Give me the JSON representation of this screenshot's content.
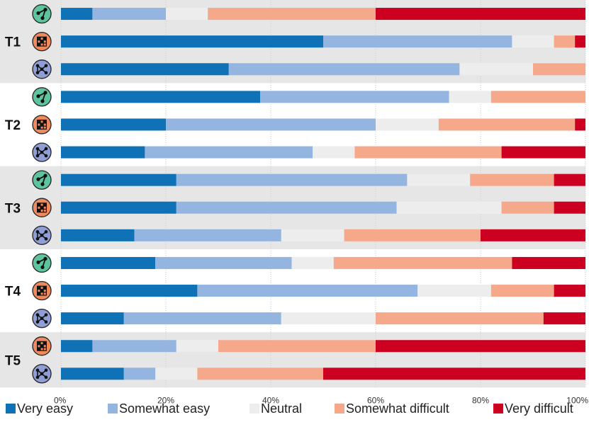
{
  "chart_data": {
    "type": "bar",
    "orientation": "horizontal",
    "stacked": true,
    "normalized": true,
    "title": "",
    "xlabel": "",
    "ylabel": "",
    "xlim": [
      0,
      100
    ],
    "x_ticks": [
      "0%",
      "20%",
      "40%",
      "60%",
      "80%",
      "100%"
    ],
    "grid": true,
    "legend_position": "bottom",
    "categories": [
      "Very easy",
      "Somewhat easy",
      "Neutral",
      "Somewhat difficult",
      "Very difficult"
    ],
    "colors": [
      "#0f72b6",
      "#94b5e0",
      "#ededed",
      "#f5a98a",
      "#cc0020"
    ],
    "icon_types": {
      "node-link": {
        "name": "node-link-icon",
        "bg": "#5ec49e"
      },
      "matrix": {
        "name": "matrix-icon",
        "bg": "#f08a5d"
      },
      "hybrid": {
        "name": "hybrid-graph-icon",
        "bg": "#8f9ed6"
      }
    },
    "groups": [
      {
        "label": "T1",
        "shaded": true,
        "rows": [
          {
            "icon": "node-link",
            "values": [
              6,
              14,
              8,
              32,
              40
            ]
          },
          {
            "icon": "matrix",
            "values": [
              50,
              36,
              8,
              4,
              2
            ]
          },
          {
            "icon": "hybrid",
            "values": [
              32,
              44,
              14,
              10,
              0
            ]
          }
        ]
      },
      {
        "label": "T2",
        "shaded": false,
        "rows": [
          {
            "icon": "node-link",
            "values": [
              38,
              36,
              8,
              18,
              0
            ]
          },
          {
            "icon": "matrix",
            "values": [
              20,
              40,
              12,
              26,
              2
            ]
          },
          {
            "icon": "hybrid",
            "values": [
              16,
              32,
              8,
              28,
              16
            ]
          }
        ]
      },
      {
        "label": "T3",
        "shaded": true,
        "rows": [
          {
            "icon": "node-link",
            "values": [
              22,
              44,
              12,
              16,
              6
            ]
          },
          {
            "icon": "matrix",
            "values": [
              22,
              42,
              20,
              10,
              6
            ]
          },
          {
            "icon": "hybrid",
            "values": [
              14,
              28,
              12,
              26,
              20
            ]
          }
        ]
      },
      {
        "label": "T4",
        "shaded": false,
        "rows": [
          {
            "icon": "node-link",
            "values": [
              18,
              26,
              8,
              34,
              14
            ]
          },
          {
            "icon": "matrix",
            "values": [
              26,
              42,
              14,
              12,
              6
            ]
          },
          {
            "icon": "hybrid",
            "values": [
              12,
              30,
              18,
              32,
              8
            ]
          }
        ]
      },
      {
        "label": "T5",
        "shaded": true,
        "rows": [
          {
            "icon": "matrix",
            "values": [
              6,
              16,
              8,
              30,
              40
            ]
          },
          {
            "icon": "hybrid",
            "values": [
              12,
              6,
              8,
              24,
              50
            ]
          }
        ]
      }
    ]
  }
}
